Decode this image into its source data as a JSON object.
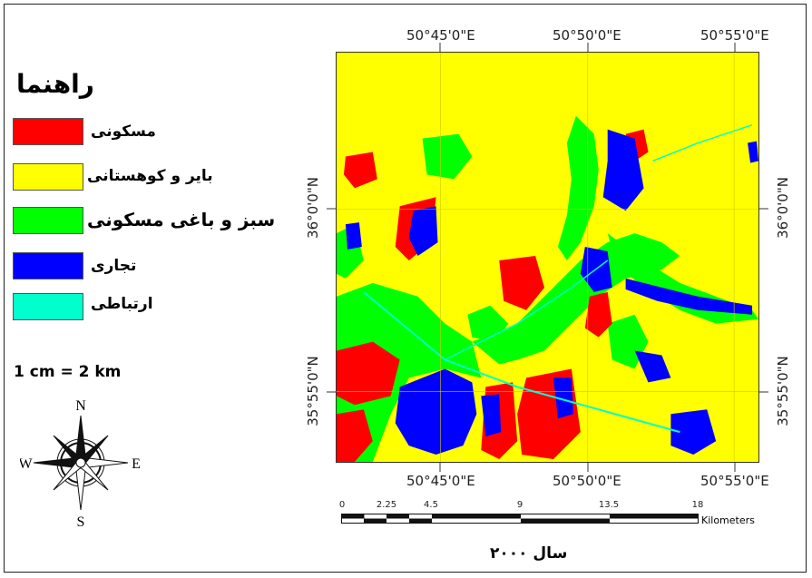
{
  "legend": {
    "title": "راهنما",
    "items": [
      {
        "label": "مسکونی",
        "color": "#ff0000"
      },
      {
        "label": "بایر و کوهستانی",
        "color": "#ffff00"
      },
      {
        "label": "سبز و باغی مسکونی",
        "color": "#00ff00"
      },
      {
        "label": "تجاری",
        "color": "#0000ff"
      },
      {
        "label": "ارتباطی",
        "color": "#00ffcc"
      }
    ]
  },
  "scale_text": "1 cm = 2 km",
  "compass": {
    "n": "N",
    "s": "S",
    "e": "E",
    "w": "W"
  },
  "coords": {
    "top": [
      "50°45'0\"E",
      "50°50'0\"E",
      "50°55'0\"E"
    ],
    "bottom": [
      "50°45'0\"E",
      "50°50'0\"E",
      "50°55'0\"E"
    ],
    "left": [
      "36°0'0\"N",
      "35°55'0\"N"
    ],
    "right": [
      "36°0'0\"N",
      "35°55'0\"N"
    ]
  },
  "scale_bar": {
    "ticks": [
      "0",
      "2.25",
      "4.5",
      "9",
      "13.5",
      "18"
    ],
    "unit": "Kilometers"
  },
  "year_caption": "سال ۲۰۰۰"
}
